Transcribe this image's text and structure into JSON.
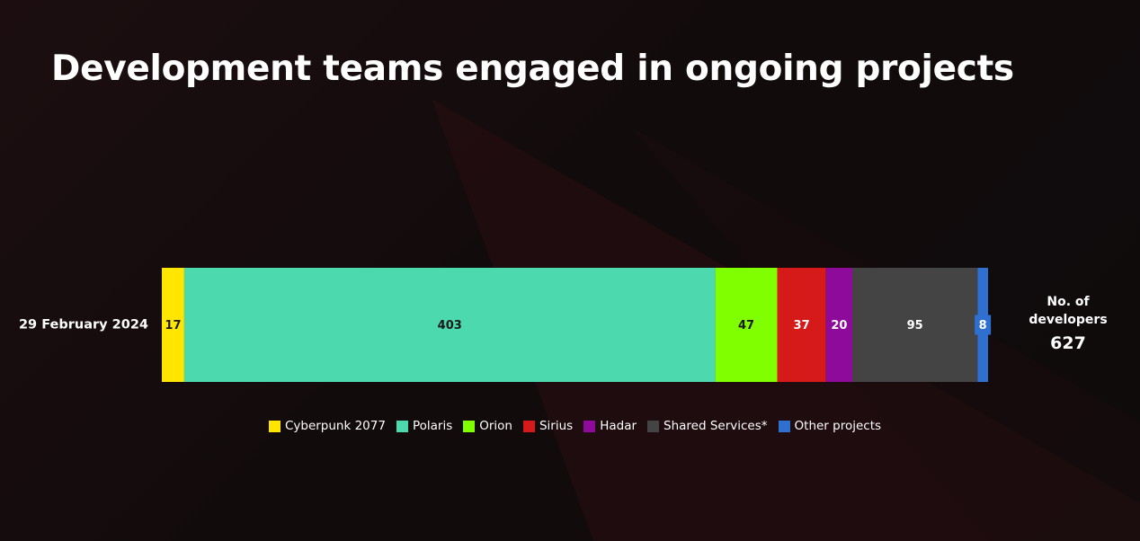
{
  "chart_data": {
    "type": "stacked-bar-horizontal",
    "title": "Development teams engaged in ongoing projects",
    "categories": [
      "29 February 2024"
    ],
    "series": [
      {
        "name": "Cyberpunk 2077",
        "color": "#ffe500",
        "values": [
          17
        ]
      },
      {
        "name": "Polaris",
        "color": "#4dd9ae",
        "values": [
          403
        ]
      },
      {
        "name": "Orion",
        "color": "#80ff00",
        "values": [
          47
        ]
      },
      {
        "name": "Sirius",
        "color": "#d61a1a",
        "values": [
          37
        ]
      },
      {
        "name": "Hadar",
        "color": "#8e0a9a",
        "values": [
          20
        ]
      },
      {
        "name": "Shared Services*",
        "color": "#444444",
        "values": [
          95
        ]
      },
      {
        "name": "Other projects",
        "color": "#2f6fd0",
        "values": [
          8
        ]
      }
    ],
    "total_label": "No. of developers",
    "total": 627
  }
}
